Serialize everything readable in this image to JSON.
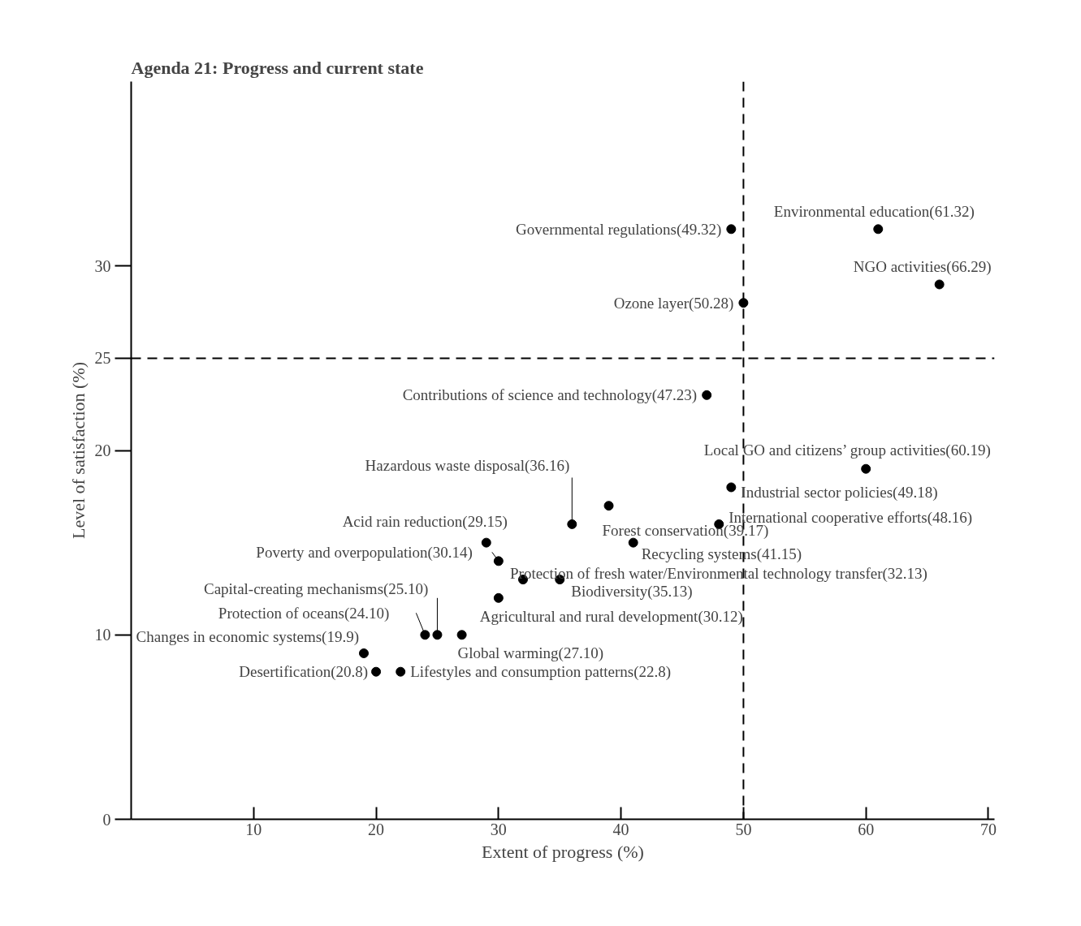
{
  "chart_data": {
    "type": "scatter",
    "title": "Agenda 21: Progress and current state",
    "xlabel": "Extent of progress (%)",
    "ylabel": "Level of satisfaction (%)",
    "xlim": [
      0,
      70.5
    ],
    "ylim": [
      0,
      40
    ],
    "xticks": [
      10,
      20,
      30,
      40,
      50,
      60,
      70
    ],
    "yticks": [
      0,
      10,
      20,
      25,
      30
    ],
    "grid": false,
    "marker": "circle",
    "x": [
      49,
      61,
      66,
      50,
      47,
      60,
      49,
      48,
      39,
      36,
      41,
      29,
      30,
      32,
      35,
      30,
      25,
      24,
      27,
      19,
      20,
      22
    ],
    "series": [
      {
        "color": "#000000",
        "values": [
          32,
          32,
          29,
          28,
          23,
          19,
          18,
          16,
          17,
          16,
          15,
          15,
          14,
          13,
          13,
          12,
          10,
          10,
          10,
          9,
          8,
          8
        ]
      }
    ],
    "ref_lines": [
      {
        "axis": "x",
        "value": 50,
        "line_style": "dashed",
        "color": "#000000"
      },
      {
        "axis": "y",
        "value": 25,
        "line_style": "dashed",
        "color": "#000000"
      }
    ],
    "annotations": [
      {
        "text": "Governmental regulations(49.32)",
        "x": 49,
        "y": 32
      },
      {
        "text": "Environmental education(61.32)",
        "x": 61,
        "y": 32
      },
      {
        "text": "NGO activities(66.29)",
        "x": 66,
        "y": 29
      },
      {
        "text": "Ozone layer(50.28)",
        "x": 50,
        "y": 28
      },
      {
        "text": "Contributions of science and technology(47.23)",
        "x": 47,
        "y": 23
      },
      {
        "text": "Local GO and citizens’ group activities(60.19)",
        "x": 60,
        "y": 19
      },
      {
        "text": "Industrial sector policies(49.18)",
        "x": 49,
        "y": 18
      },
      {
        "text": "International cooperative efforts(48.16)",
        "x": 48,
        "y": 16
      },
      {
        "text": "Forest conservation(39.17)",
        "x": 39,
        "y": 17
      },
      {
        "text": "Hazardous waste disposal(36.16)",
        "x": 36,
        "y": 16
      },
      {
        "text": "Recycling systems(41.15)",
        "x": 41,
        "y": 15
      },
      {
        "text": "Acid rain reduction(29.15)",
        "x": 29,
        "y": 15
      },
      {
        "text": "Poverty and overpopulation(30.14)",
        "x": 30,
        "y": 14
      },
      {
        "text": "Protection of fresh water/Environmental technology transfer(32.13)",
        "x": 32,
        "y": 13
      },
      {
        "text": "Biodiversity(35.13)",
        "x": 35,
        "y": 13
      },
      {
        "text": "Agricultural and rural development(30.12)",
        "x": 30,
        "y": 12
      },
      {
        "text": "Capital-creating mechanisms(25.10)",
        "x": 25,
        "y": 10
      },
      {
        "text": "Protection of oceans(24.10)",
        "x": 24,
        "y": 10
      },
      {
        "text": "Global warming(27.10)",
        "x": 27,
        "y": 10
      },
      {
        "text": "Changes in economic systems(19.9)",
        "x": 19,
        "y": 9
      },
      {
        "text": "Desertification(20.8)",
        "x": 20,
        "y": 8
      },
      {
        "text": "Lifestyles and consumption patterns(22.8)",
        "x": 22,
        "y": 8
      }
    ]
  }
}
